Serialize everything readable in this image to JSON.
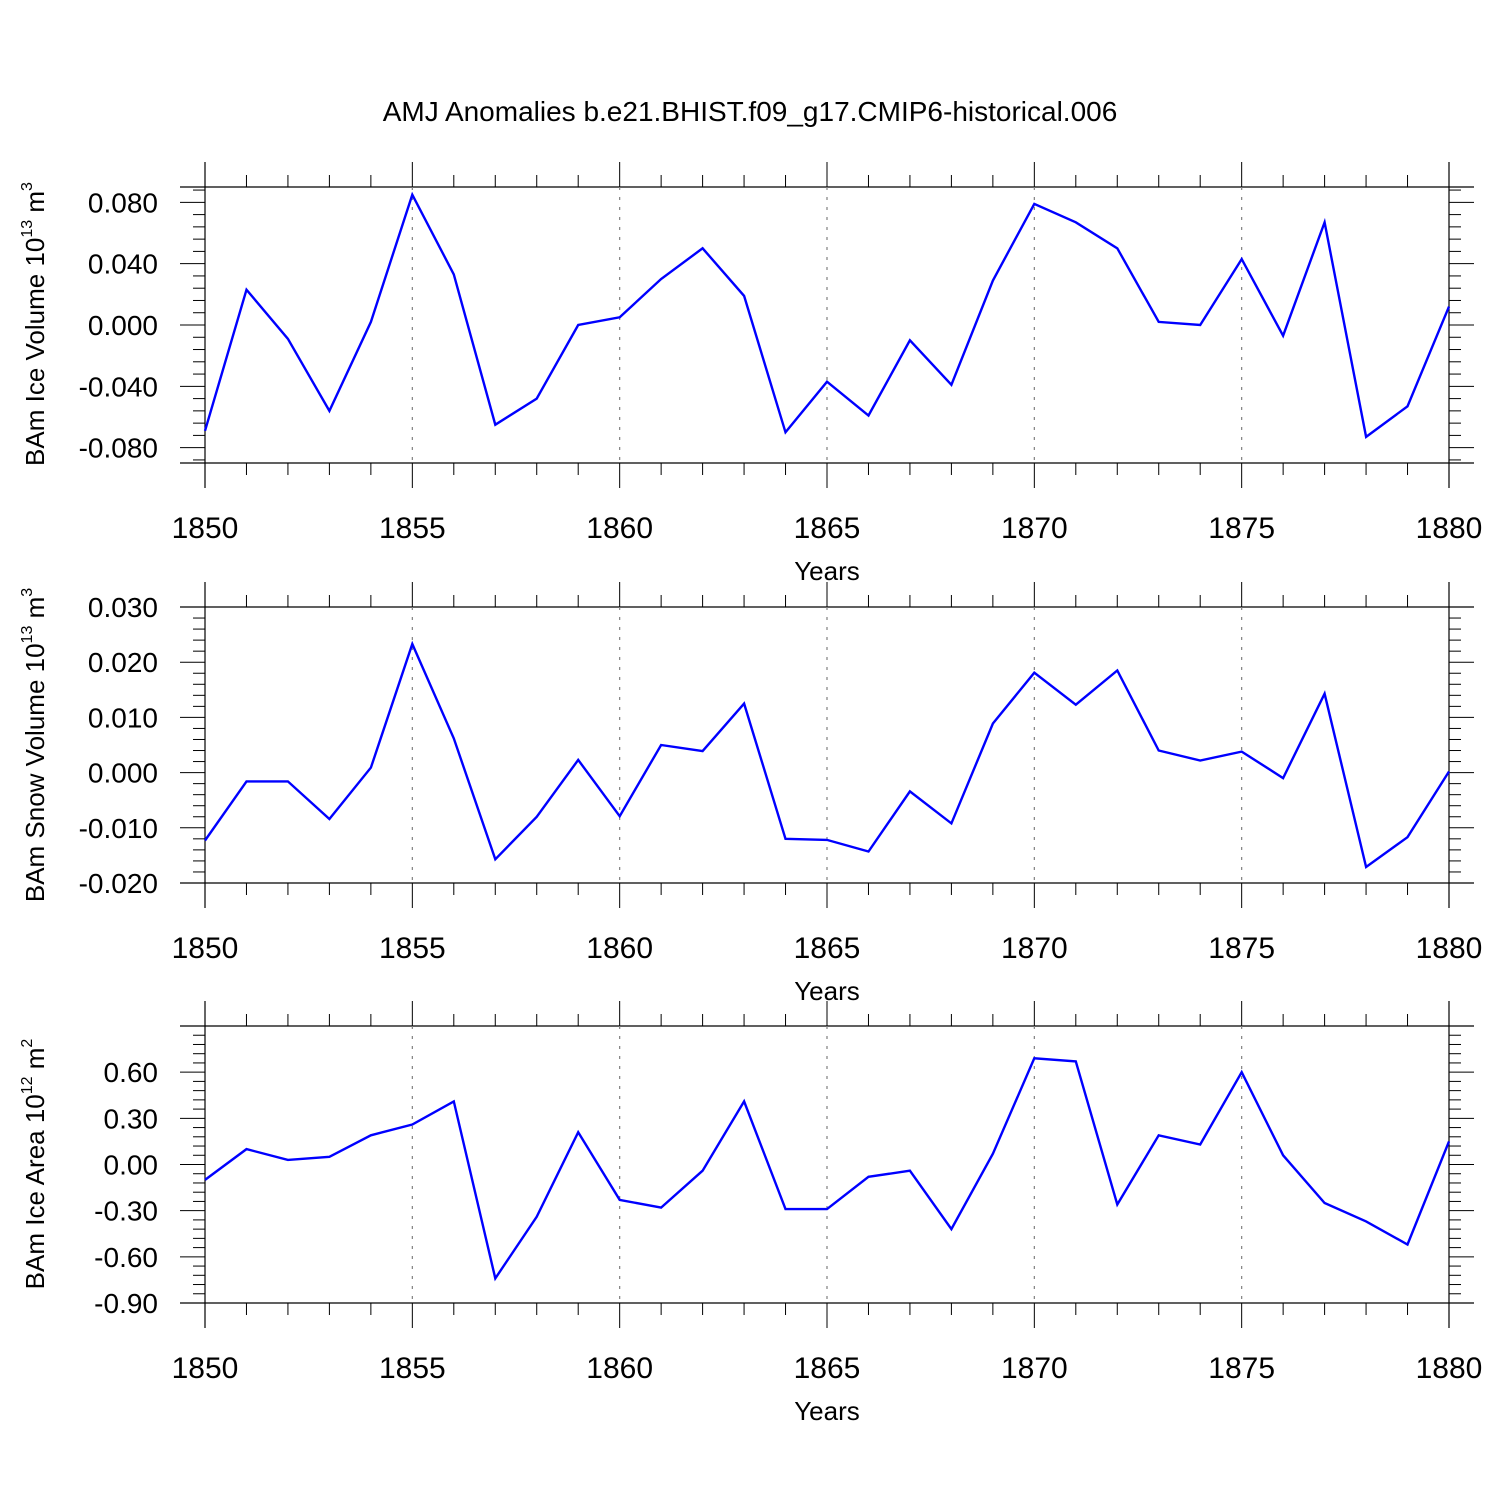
{
  "title": "AMJ Anomalies b.e21.BHIST.f09_g17.CMIP6-historical.006",
  "colors": {
    "series": "#0000ff",
    "axis": "#000000",
    "grid": "#808080"
  },
  "chart_data": [
    {
      "type": "line",
      "xlabel": "Years",
      "ylabel": {
        "main": "BAm Ice Volume 10",
        "exp": "13",
        "unit": " m",
        "unit_exp": "3"
      },
      "xlim": [
        1850,
        1880
      ],
      "ylim": [
        -0.09,
        0.09
      ],
      "xticks": [
        "1850",
        "1855",
        "1860",
        "1865",
        "1870",
        "1875",
        "1880"
      ],
      "yticks": [
        "0.080",
        "0.040",
        "0.000",
        "-0.040",
        "-0.080"
      ],
      "ytick_values": [
        0.08,
        0.04,
        0.0,
        -0.04,
        -0.08
      ],
      "grid": "vertical dashed at major x ticks",
      "x": [
        1850,
        1851,
        1852,
        1853,
        1854,
        1855,
        1856,
        1857,
        1858,
        1859,
        1860,
        1861,
        1862,
        1863,
        1864,
        1865,
        1866,
        1867,
        1868,
        1869,
        1870,
        1871,
        1872,
        1873,
        1874,
        1875,
        1876,
        1877,
        1878,
        1879,
        1880
      ],
      "values": [
        -0.069,
        0.023,
        -0.009,
        -0.056,
        0.002,
        0.085,
        0.033,
        -0.065,
        -0.048,
        0.0,
        0.005,
        0.03,
        0.05,
        0.019,
        -0.07,
        -0.037,
        -0.059,
        -0.01,
        -0.039,
        0.029,
        0.079,
        0.067,
        0.05,
        0.002,
        0.0,
        0.043,
        -0.007,
        0.067,
        -0.073,
        -0.053,
        0.012
      ]
    },
    {
      "type": "line",
      "xlabel": "Years",
      "ylabel": {
        "main": "BAm Snow Volume 10",
        "exp": "13",
        "unit": " m",
        "unit_exp": "3"
      },
      "xlim": [
        1850,
        1880
      ],
      "ylim": [
        -0.02,
        0.03
      ],
      "xticks": [
        "1850",
        "1855",
        "1860",
        "1865",
        "1870",
        "1875",
        "1880"
      ],
      "yticks": [
        "0.030",
        "0.020",
        "0.010",
        "0.000",
        "-0.010",
        "-0.020"
      ],
      "ytick_values": [
        0.03,
        0.02,
        0.01,
        0.0,
        -0.01,
        -0.02
      ],
      "grid": "vertical dashed at major x ticks",
      "x": [
        1850,
        1851,
        1852,
        1853,
        1854,
        1855,
        1856,
        1857,
        1858,
        1859,
        1860,
        1861,
        1862,
        1863,
        1864,
        1865,
        1866,
        1867,
        1868,
        1869,
        1870,
        1871,
        1872,
        1873,
        1874,
        1875,
        1876,
        1877,
        1878,
        1879,
        1880
      ],
      "values": [
        -0.0123,
        -0.0016,
        -0.0016,
        -0.0084,
        0.0009,
        0.0233,
        0.0062,
        -0.0157,
        -0.008,
        0.0023,
        -0.0079,
        0.005,
        0.0039,
        0.0125,
        -0.012,
        -0.0122,
        -0.0143,
        -0.0034,
        -0.0092,
        0.0089,
        0.0181,
        0.0123,
        0.0185,
        0.004,
        0.0022,
        0.0038,
        -0.001,
        0.0143,
        -0.0171,
        -0.0117,
        0.0002
      ]
    },
    {
      "type": "line",
      "xlabel": "Years",
      "ylabel": {
        "main": "BAm Ice Area 10",
        "exp": "12",
        "unit": " m",
        "unit_exp": "2"
      },
      "xlim": [
        1850,
        1880
      ],
      "ylim": [
        -0.9,
        0.9
      ],
      "xticks": [
        "1850",
        "1855",
        "1860",
        "1865",
        "1870",
        "1875",
        "1880"
      ],
      "yticks": [
        "0.60",
        "0.30",
        "0.00",
        "-0.30",
        "-0.60",
        "-0.90"
      ],
      "ytick_values": [
        0.6,
        0.3,
        0.0,
        -0.3,
        -0.6,
        -0.9
      ],
      "grid": "vertical dashed at major x ticks",
      "x": [
        1850,
        1851,
        1852,
        1853,
        1854,
        1855,
        1856,
        1857,
        1858,
        1859,
        1860,
        1861,
        1862,
        1863,
        1864,
        1865,
        1866,
        1867,
        1868,
        1869,
        1870,
        1871,
        1872,
        1873,
        1874,
        1875,
        1876,
        1877,
        1878,
        1879,
        1880
      ],
      "values": [
        -0.1,
        0.1,
        0.03,
        0.05,
        0.19,
        0.26,
        0.41,
        -0.74,
        -0.34,
        0.21,
        -0.23,
        -0.28,
        -0.04,
        0.41,
        -0.29,
        -0.29,
        -0.08,
        -0.04,
        -0.42,
        0.07,
        0.69,
        0.67,
        -0.26,
        0.19,
        0.13,
        0.6,
        0.06,
        -0.25,
        -0.37,
        -0.52,
        0.15
      ]
    }
  ]
}
